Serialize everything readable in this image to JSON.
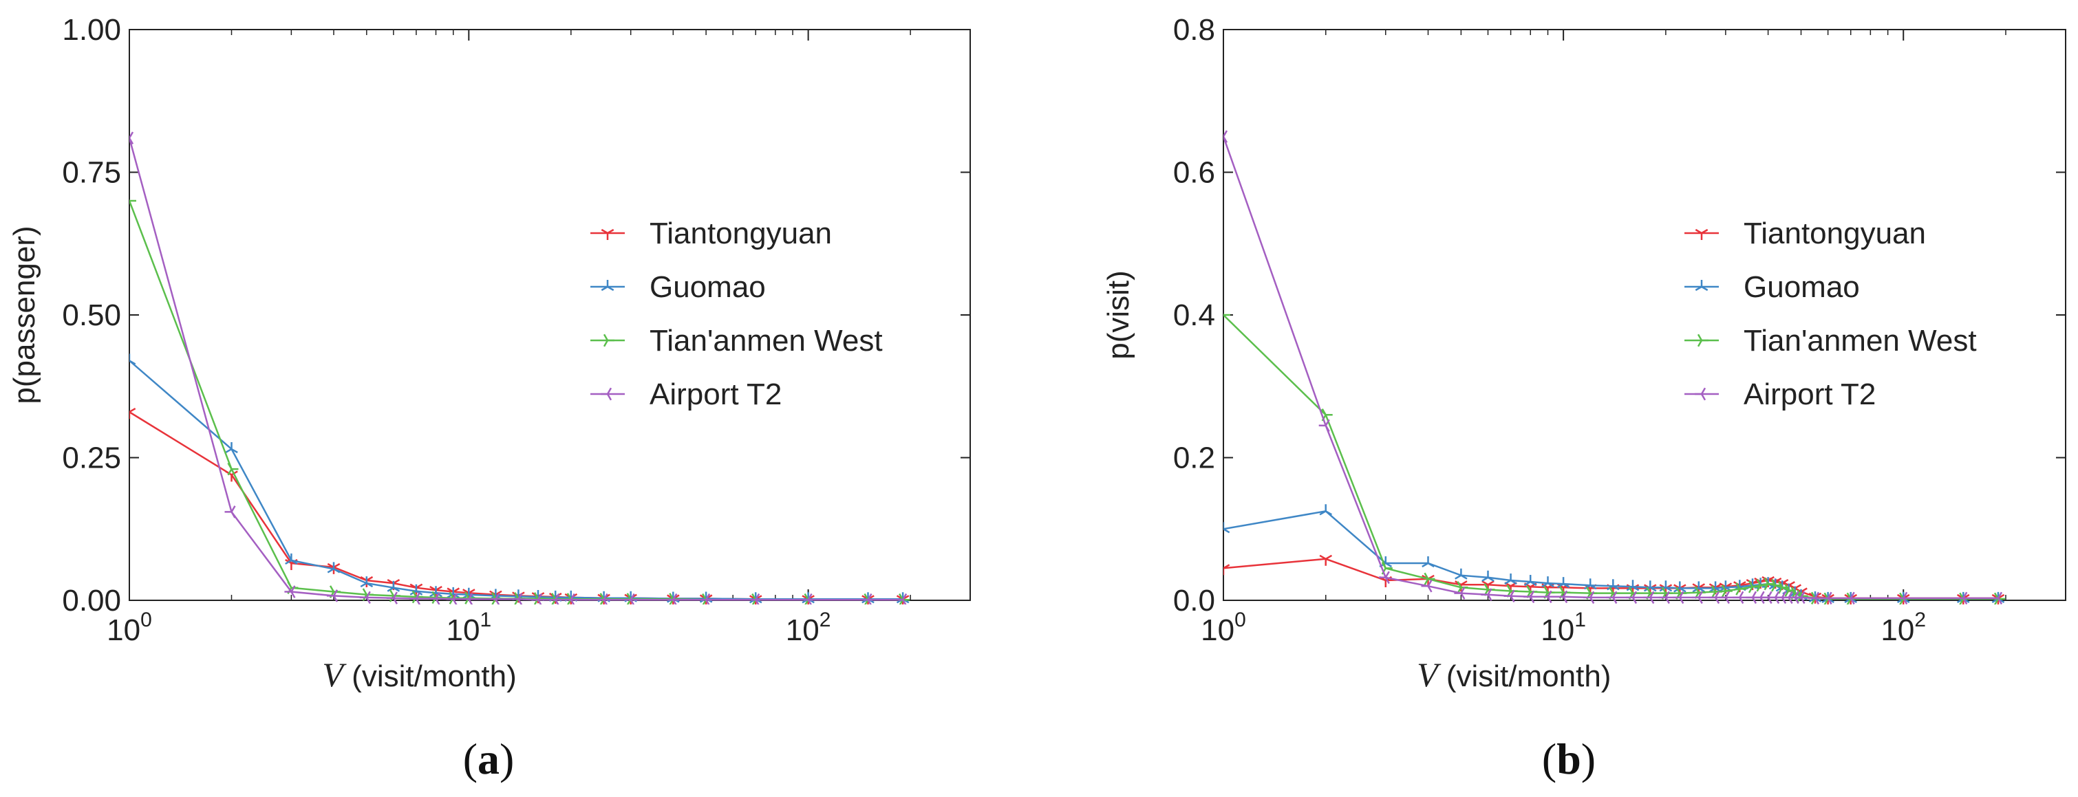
{
  "colors": {
    "Tiantongyuan": "#e8333a",
    "Guomao": "#3f87c6",
    "Tian'anmen West": "#5bbf4c",
    "Airport T2": "#a45fc2"
  },
  "chart_data": [
    {
      "type": "line",
      "panel_label": "(a)",
      "panel_label_parts": [
        "(",
        "a",
        ")"
      ],
      "xlabel_var": "V",
      "xlabel_unit": " (visit/month)",
      "ylabel": "p(passenger)",
      "x_scale": "log",
      "xlim": [
        1,
        300
      ],
      "ylim": [
        0,
        1.0
      ],
      "x_ticks": [
        1,
        10,
        100
      ],
      "x_tick_labels": [
        {
          "base": "10",
          "exp": "0"
        },
        {
          "base": "10",
          "exp": "1"
        },
        {
          "base": "10",
          "exp": "2"
        }
      ],
      "y_ticks": [
        0,
        0.25,
        0.5,
        0.75,
        1.0
      ],
      "y_tick_labels": [
        "0.00",
        "0.25",
        "0.50",
        "0.75",
        "1.00"
      ],
      "legend": "center-right",
      "series": [
        {
          "name": "Tiantongyuan",
          "marker": "tri-down",
          "x": [
            1,
            2,
            3,
            4,
            5,
            6,
            7,
            8,
            9,
            10,
            12,
            14,
            16,
            18,
            20,
            25,
            30,
            40,
            50,
            70,
            100,
            150,
            190
          ],
          "y": [
            0.33,
            0.22,
            0.065,
            0.058,
            0.035,
            0.03,
            0.022,
            0.018,
            0.015,
            0.013,
            0.01,
            0.008,
            0.007,
            0.006,
            0.005,
            0.004,
            0.004,
            0.003,
            0.003,
            0.002,
            0.002,
            0.002,
            0.002
          ]
        },
        {
          "name": "Guomao",
          "marker": "tri-up",
          "x": [
            1,
            2,
            3,
            4,
            5,
            6,
            7,
            8,
            9,
            10,
            12,
            14,
            16,
            18,
            20,
            25,
            30,
            40,
            50,
            70,
            100,
            150,
            190
          ],
          "y": [
            0.42,
            0.265,
            0.07,
            0.055,
            0.03,
            0.022,
            0.016,
            0.013,
            0.011,
            0.01,
            0.008,
            0.007,
            0.006,
            0.005,
            0.005,
            0.004,
            0.004,
            0.003,
            0.003,
            0.002,
            0.002,
            0.002,
            0.002
          ]
        },
        {
          "name": "Tian'anmen West",
          "marker": "tri-left",
          "x": [
            1,
            2,
            3,
            4,
            5,
            6,
            7,
            8,
            9,
            10,
            12,
            14,
            16,
            18,
            20,
            25,
            30,
            40,
            50,
            70,
            100,
            150,
            190
          ],
          "y": [
            0.7,
            0.23,
            0.022,
            0.015,
            0.01,
            0.008,
            0.006,
            0.005,
            0.004,
            0.004,
            0.003,
            0.003,
            0.003,
            0.002,
            0.002,
            0.002,
            0.002,
            0.002,
            0.001,
            0.001,
            0.001,
            0.001,
            0.001
          ]
        },
        {
          "name": "Airport T2",
          "marker": "tri-right",
          "x": [
            1,
            2,
            3,
            4,
            5,
            6,
            7,
            8,
            9,
            10,
            12,
            14,
            16,
            18,
            20,
            25,
            30,
            40,
            50,
            70,
            100,
            150,
            190
          ],
          "y": [
            0.81,
            0.155,
            0.015,
            0.008,
            0.005,
            0.004,
            0.003,
            0.003,
            0.002,
            0.002,
            0.002,
            0.002,
            0.001,
            0.001,
            0.001,
            0.001,
            0.001,
            0.001,
            0.001,
            0.001,
            0.001,
            0.001,
            0.001
          ]
        }
      ]
    },
    {
      "type": "line",
      "panel_label": "(b)",
      "panel_label_parts": [
        "(",
        "b",
        ")"
      ],
      "xlabel_var": "V",
      "xlabel_unit": " (visit/month)",
      "ylabel": "p(visit)",
      "x_scale": "log",
      "xlim": [
        1,
        300
      ],
      "ylim": [
        0,
        0.8
      ],
      "x_ticks": [
        1,
        10,
        100
      ],
      "x_tick_labels": [
        {
          "base": "10",
          "exp": "0"
        },
        {
          "base": "10",
          "exp": "1"
        },
        {
          "base": "10",
          "exp": "2"
        }
      ],
      "y_ticks": [
        0,
        0.2,
        0.4,
        0.6,
        0.8
      ],
      "y_tick_labels": [
        "0.0",
        "0.2",
        "0.4",
        "0.6",
        "0.8"
      ],
      "legend": "center-right",
      "series": [
        {
          "name": "Tiantongyuan",
          "marker": "tri-down",
          "x": [
            1,
            2,
            3,
            4,
            5,
            6,
            7,
            8,
            9,
            10,
            12,
            14,
            16,
            18,
            20,
            22,
            25,
            28,
            30,
            33,
            36,
            38,
            40,
            42,
            44,
            46,
            48,
            50,
            55,
            60,
            70,
            100,
            150,
            190
          ],
          "y": [
            0.045,
            0.058,
            0.028,
            0.03,
            0.022,
            0.022,
            0.02,
            0.019,
            0.018,
            0.018,
            0.017,
            0.017,
            0.017,
            0.017,
            0.017,
            0.017,
            0.018,
            0.018,
            0.019,
            0.021,
            0.024,
            0.026,
            0.028,
            0.026,
            0.024,
            0.021,
            0.017,
            0.012,
            0.005,
            0.003,
            0.003,
            0.003,
            0.003,
            0.003
          ]
        },
        {
          "name": "Guomao",
          "marker": "tri-up",
          "x": [
            1,
            2,
            3,
            4,
            5,
            6,
            7,
            8,
            9,
            10,
            12,
            14,
            16,
            18,
            20,
            22,
            25,
            28,
            30,
            33,
            36,
            38,
            40,
            42,
            44,
            46,
            48,
            50,
            55,
            60,
            70,
            100,
            150,
            190
          ],
          "y": [
            0.1,
            0.125,
            0.052,
            0.052,
            0.035,
            0.032,
            0.028,
            0.026,
            0.024,
            0.023,
            0.021,
            0.02,
            0.019,
            0.018,
            0.018,
            0.017,
            0.017,
            0.017,
            0.018,
            0.019,
            0.021,
            0.022,
            0.023,
            0.021,
            0.018,
            0.014,
            0.01,
            0.006,
            0.003,
            0.002,
            0.002,
            0.002,
            0.002,
            0.002
          ]
        },
        {
          "name": "Tian'anmen West",
          "marker": "tri-left",
          "x": [
            1,
            2,
            3,
            4,
            5,
            6,
            7,
            8,
            9,
            10,
            12,
            14,
            16,
            18,
            20,
            22,
            25,
            28,
            30,
            33,
            36,
            38,
            40,
            42,
            44,
            46,
            48,
            50,
            55,
            60,
            70,
            100,
            150,
            190
          ],
          "y": [
            0.4,
            0.26,
            0.045,
            0.03,
            0.018,
            0.015,
            0.013,
            0.012,
            0.011,
            0.011,
            0.01,
            0.01,
            0.01,
            0.01,
            0.01,
            0.01,
            0.011,
            0.012,
            0.013,
            0.016,
            0.019,
            0.021,
            0.023,
            0.021,
            0.018,
            0.014,
            0.01,
            0.006,
            0.003,
            0.002,
            0.002,
            0.002,
            0.002,
            0.002
          ]
        },
        {
          "name": "Airport T2",
          "marker": "tri-right",
          "x": [
            1,
            2,
            3,
            4,
            5,
            6,
            7,
            8,
            9,
            10,
            12,
            14,
            16,
            18,
            20,
            22,
            25,
            28,
            30,
            33,
            36,
            38,
            40,
            42,
            44,
            46,
            48,
            50,
            55,
            60,
            70,
            100,
            150,
            190
          ],
          "y": [
            0.65,
            0.245,
            0.032,
            0.02,
            0.01,
            0.008,
            0.006,
            0.005,
            0.005,
            0.005,
            0.004,
            0.004,
            0.004,
            0.004,
            0.004,
            0.004,
            0.004,
            0.004,
            0.004,
            0.004,
            0.004,
            0.004,
            0.004,
            0.004,
            0.004,
            0.004,
            0.004,
            0.004,
            0.003,
            0.003,
            0.003,
            0.003,
            0.003,
            0.003
          ]
        }
      ]
    }
  ]
}
